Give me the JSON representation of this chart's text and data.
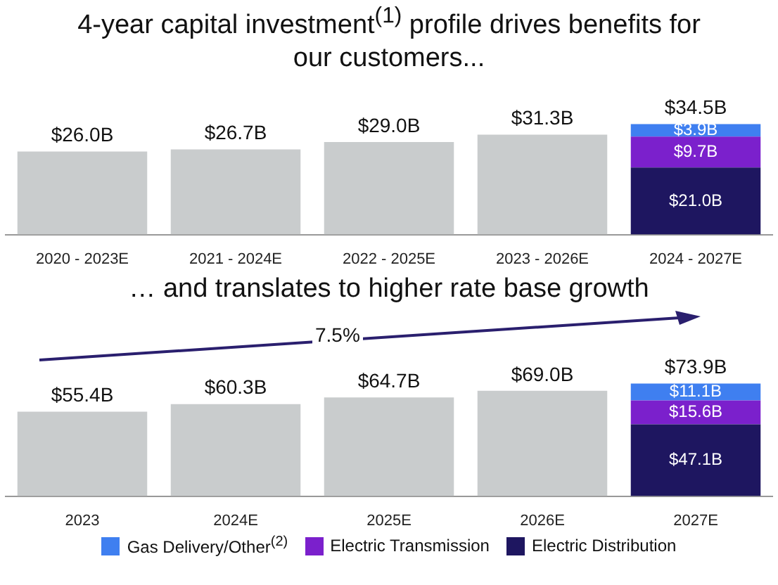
{
  "chart_data": [
    {
      "type": "bar",
      "title": "4-year capital investment$^{(1)}$ profile drives benefits for our customers...",
      "categories": [
        "2020 - 2023E",
        "2021 - 2024E",
        "2022 - 2025E",
        "2023 - 2026E",
        "2024 - 2027E"
      ],
      "stacked": true,
      "legend": false,
      "series": [
        {
          "color": "#c9cccd",
          "values": [
            26.0,
            26.7,
            29.0,
            31.3,
            null
          ],
          "value_labels": [
            "$26.0B",
            "$26.7B",
            "$29.0B",
            "$31.3B",
            null
          ]
        },
        {
          "color": "#1e1660",
          "values": [
            null,
            null,
            null,
            null,
            21.0
          ],
          "value_labels": [
            null,
            null,
            null,
            null,
            "$21.0B"
          ]
        },
        {
          "color": "#7b20cc",
          "values": [
            null,
            null,
            null,
            null,
            9.7
          ],
          "value_labels": [
            null,
            null,
            null,
            null,
            "$9.7B"
          ]
        },
        {
          "color": "#3f7ff0",
          "values": [
            null,
            null,
            null,
            null,
            3.9
          ],
          "value_labels": [
            null,
            null,
            null,
            null,
            "$3.9B"
          ]
        }
      ],
      "totals": [
        null,
        null,
        null,
        null,
        "$34.5B"
      ]
    },
    {
      "type": "bar",
      "title": "… and translates to higher rate base growth",
      "categories": [
        "2023",
        "2024E",
        "2025E",
        "2026E",
        "2027E"
      ],
      "stacked": true,
      "legend": "bottom",
      "annotations": [
        "7.5%"
      ],
      "series": [
        {
          "color": "#c9cccd",
          "values": [
            55.4,
            60.3,
            64.7,
            69.0,
            null
          ],
          "value_labels": [
            "$55.4B",
            "$60.3B",
            "$64.7B",
            "$69.0B",
            null
          ]
        },
        {
          "name": "Electric Distribution",
          "color": "#1e1660",
          "values": [
            null,
            null,
            null,
            null,
            47.1
          ],
          "value_labels": [
            null,
            null,
            null,
            null,
            "$47.1B"
          ]
        },
        {
          "name": "Electric Transmission",
          "color": "#7b20cc",
          "values": [
            null,
            null,
            null,
            null,
            15.6
          ],
          "value_labels": [
            null,
            null,
            null,
            null,
            "$15.6B"
          ]
        },
        {
          "name": "Gas Delivery/Other$^{(2)}$",
          "color": "#3f7ff0",
          "values": [
            null,
            null,
            null,
            null,
            11.1
          ],
          "value_labels": [
            null,
            null,
            null,
            null,
            "$11.1B"
          ]
        }
      ],
      "totals": [
        null,
        null,
        null,
        null,
        "$73.9B"
      ]
    }
  ]
}
